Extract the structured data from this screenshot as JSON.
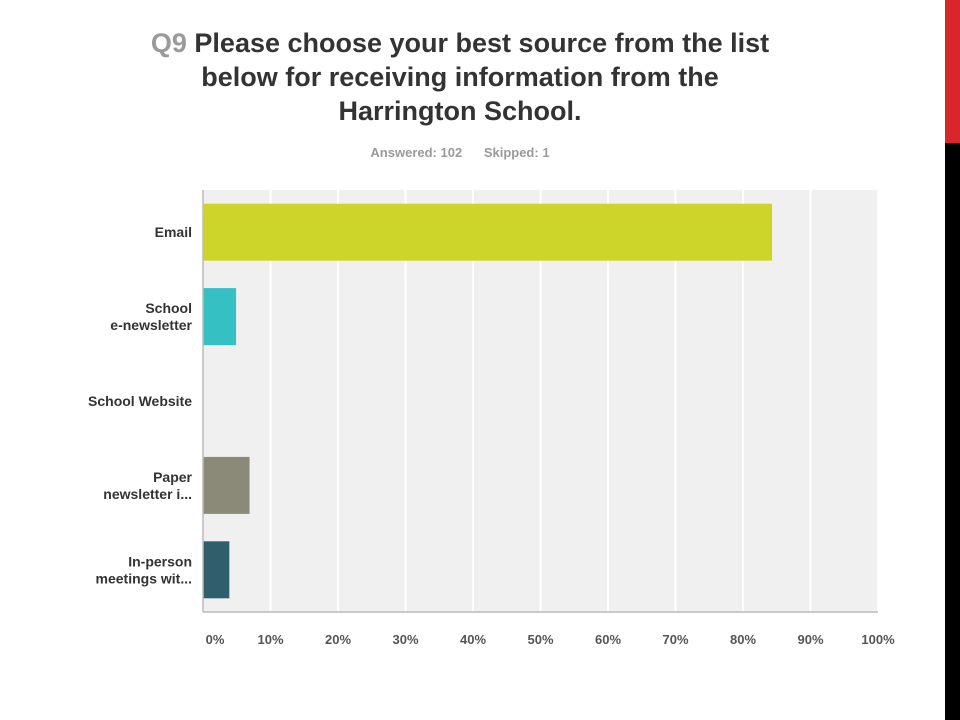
{
  "slide": {
    "accent_colors": [
      "#000000",
      "#d9262c"
    ]
  },
  "chart_data": {
    "type": "bar",
    "orientation": "horizontal",
    "question_number": "Q9",
    "title": "Please choose your best source from the list below for receiving information from the Harrington School.",
    "answered": "Answered: 102",
    "skipped": "Skipped: 1",
    "categories": [
      [
        "Email"
      ],
      [
        "School",
        "e-newsletter"
      ],
      [
        "School Website"
      ],
      [
        "Paper",
        "newsletter i..."
      ],
      [
        "In-person",
        "meetings wit..."
      ]
    ],
    "values": [
      84.3,
      4.9,
      0,
      6.9,
      3.9
    ],
    "colors": [
      "#cdd52b",
      "#35c0c4",
      "#9e9e9e",
      "#8b8a78",
      "#2f5f6b"
    ],
    "unit": "%",
    "xlim": [
      0,
      100
    ],
    "x_ticks": [
      "0%",
      "10%",
      "20%",
      "30%",
      "40%",
      "50%",
      "60%",
      "70%",
      "80%",
      "90%",
      "100%"
    ],
    "grid": true,
    "plot_background": "#f0f0f0",
    "gridline_color": "#ffffff"
  }
}
